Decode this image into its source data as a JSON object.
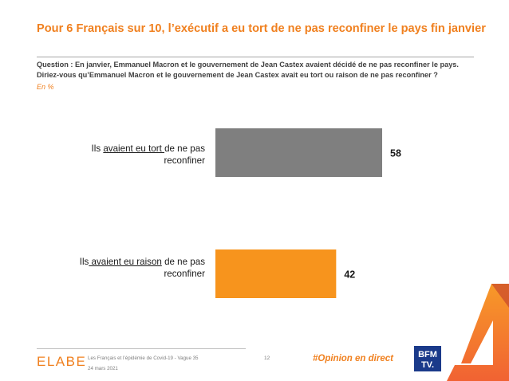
{
  "header": {
    "title": "Pour 6 Français sur 10, l’exécutif a eu tort de ne pas reconfiner le pays fin janvier",
    "question_line1": "Question : En janvier, Emmanuel Macron et le gouvernement de Jean Castex avaient décidé de ne pas reconfiner le pays.",
    "question_line2": "Diriez-vous qu’Emmanuel Macron et le gouvernement de Jean Castex avait eu tort ou raison de ne pas reconfiner ?",
    "unit": "En %"
  },
  "labels": {
    "cat1_prefix": "Ils ",
    "cat1_emph": "avaient eu tort ",
    "cat1_suffix": "de ne pas",
    "cat1_line2": "reconfiner",
    "cat2_prefix": "Ils",
    "cat2_emph": " avaient eu raison",
    "cat2_suffix": " de ne pas",
    "cat2_line2": "reconfiner"
  },
  "chart_data": {
    "type": "bar",
    "orientation": "horizontal",
    "categories": [
      "Ils avaient eu tort de ne pas reconfiner",
      "Ils avaient eu raison de ne pas reconfiner"
    ],
    "values": [
      58,
      42
    ],
    "colors": [
      "#7f7f7f",
      "#f7941d"
    ],
    "unit": "En %",
    "xlim": [
      0,
      100
    ],
    "title": "Pour 6 Français sur 10, l’exécutif a eu tort de ne pas reconfiner le pays fin janvier"
  },
  "footer": {
    "logo": "ELABE",
    "survey": "Les Français et l’épidémie de Covid-19 - Vague 35",
    "date": "24 mars 2021",
    "page": "12",
    "hashtag": "#Opinion en direct",
    "bfm_line1": "BFM",
    "bfm_line2": "TV."
  }
}
